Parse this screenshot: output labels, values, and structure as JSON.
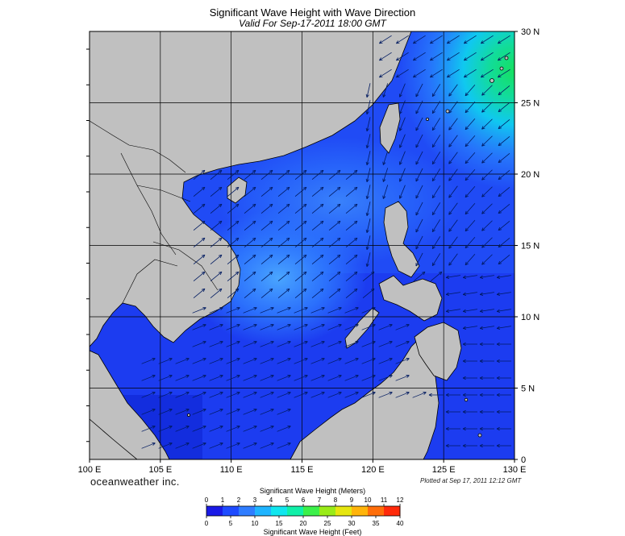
{
  "map": {
    "title": "Significant Wave Height with Wave Direction",
    "subtitle": "Valid For Sep-17-2011 18:00 GMT",
    "lon_ticks": [
      "100 E",
      "105 E",
      "110 E",
      "115 E",
      "120 E",
      "125 E",
      "130 E"
    ],
    "lat_ticks": [
      "30 N",
      "25 N",
      "20 N",
      "15 N",
      "10 N",
      "5 N",
      "0"
    ],
    "lon_range": [
      100,
      130
    ],
    "lat_range": [
      0,
      30
    ],
    "colors": {
      "land": "#c0c0c0",
      "ocean_base": "#1c3cf0",
      "ocean_light": "#2f7dff",
      "ocean_swell": "#10c8f0",
      "ocean_high": "#16e060",
      "gridline": "#000000"
    }
  },
  "branding": {
    "logo_text": "oceanweather inc.",
    "plotted_text": "Plotted at Sep 17, 2011 12:12 GMT"
  },
  "colorbar": {
    "meters_title": "Significant Wave Height (Meters)",
    "feet_title": "Significant Wave Height (Feet)",
    "meter_ticks": [
      "0",
      "1",
      "2",
      "3",
      "4",
      "5",
      "6",
      "7",
      "8",
      "9",
      "10",
      "11",
      "12"
    ],
    "feet_ticks": [
      "0",
      "5",
      "10",
      "15",
      "20",
      "25",
      "30",
      "35",
      "40"
    ],
    "colors": [
      "#1a1ae6",
      "#1e4bff",
      "#2f7dff",
      "#1fb4ff",
      "#10e6ee",
      "#10f0a8",
      "#3cf04a",
      "#9aeb18",
      "#e6e60f",
      "#ffb40a",
      "#ff6e0a",
      "#ff2a0a"
    ]
  }
}
